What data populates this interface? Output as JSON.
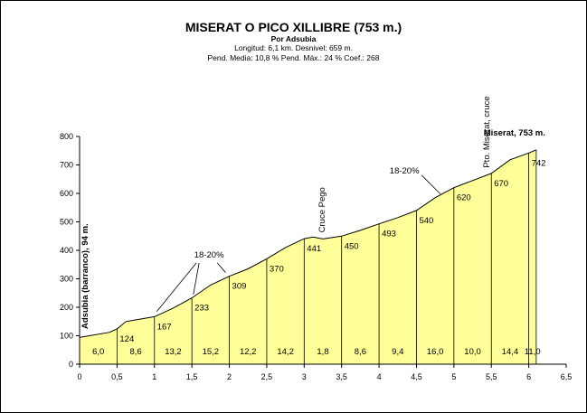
{
  "chart_data": {
    "type": "area",
    "title": "MISERAT O PICO XILLIBRE  (753 m.)",
    "subtitle": "Por Adsubia",
    "info_line1": "Longitud: 6,1 km.  Desnivel: 659 m.",
    "info_line2": "Pend. Media: 10,8 %  Pend. Máx.: 24 %  Coef.: 268",
    "xlim": [
      0,
      6.5
    ],
    "ylim": [
      0,
      800
    ],
    "grid": false,
    "x_ticks": [
      {
        "v": 0,
        "label": "0"
      },
      {
        "v": 0.5,
        "label": "0,5"
      },
      {
        "v": 1,
        "label": "1"
      },
      {
        "v": 1.5,
        "label": "1,5"
      },
      {
        "v": 2,
        "label": "2"
      },
      {
        "v": 2.5,
        "label": "2,5"
      },
      {
        "v": 3,
        "label": "3"
      },
      {
        "v": 3.5,
        "label": "3,5"
      },
      {
        "v": 4,
        "label": "4"
      },
      {
        "v": 4.5,
        "label": "4,5"
      },
      {
        "v": 5,
        "label": "5"
      },
      {
        "v": 5.5,
        "label": "5,5"
      },
      {
        "v": 6,
        "label": "6"
      },
      {
        "v": 6.5,
        "label": "6,5"
      }
    ],
    "y_ticks": [
      0,
      100,
      200,
      300,
      400,
      500,
      600,
      700,
      800
    ],
    "profile": [
      [
        0,
        94
      ],
      [
        0.4,
        112
      ],
      [
        0.5,
        124
      ],
      [
        0.62,
        150
      ],
      [
        0.8,
        158
      ],
      [
        1,
        167
      ],
      [
        1.25,
        197
      ],
      [
        1.5,
        233
      ],
      [
        1.75,
        278
      ],
      [
        2,
        309
      ],
      [
        2.25,
        335
      ],
      [
        2.5,
        370
      ],
      [
        2.75,
        410
      ],
      [
        3,
        441
      ],
      [
        3.12,
        447
      ],
      [
        3.25,
        440
      ],
      [
        3.5,
        450
      ],
      [
        3.75,
        470
      ],
      [
        4,
        493
      ],
      [
        4.25,
        515
      ],
      [
        4.5,
        540
      ],
      [
        4.75,
        585
      ],
      [
        5,
        620
      ],
      [
        5.25,
        645
      ],
      [
        5.5,
        670
      ],
      [
        5.75,
        718
      ],
      [
        6,
        742
      ],
      [
        6.1,
        753
      ]
    ],
    "km_lines": [
      0.5,
      1,
      1.5,
      2,
      2.5,
      3,
      3.5,
      4,
      4.5,
      5,
      5.5,
      6,
      6.1
    ],
    "altitude_labels": [
      {
        "x": 0.5,
        "label": "124"
      },
      {
        "x": 1,
        "label": "167"
      },
      {
        "x": 1.5,
        "label": "233"
      },
      {
        "x": 2,
        "label": "309"
      },
      {
        "x": 2.5,
        "label": "370"
      },
      {
        "x": 3,
        "label": "441"
      },
      {
        "x": 3.5,
        "label": "450"
      },
      {
        "x": 4,
        "label": "493"
      },
      {
        "x": 4.5,
        "label": "540"
      },
      {
        "x": 5,
        "label": "620"
      },
      {
        "x": 5.5,
        "label": "670"
      },
      {
        "x": 6,
        "label": "742"
      }
    ],
    "gradients": [
      {
        "x": 0.25,
        "label": "6,0"
      },
      {
        "x": 0.75,
        "label": "8,6"
      },
      {
        "x": 1.25,
        "label": "13,2"
      },
      {
        "x": 1.75,
        "label": "15,2"
      },
      {
        "x": 2.25,
        "label": "12,2"
      },
      {
        "x": 2.75,
        "label": "14,2"
      },
      {
        "x": 3.25,
        "label": "1,8"
      },
      {
        "x": 3.75,
        "label": "8,6"
      },
      {
        "x": 4.25,
        "label": "9,4"
      },
      {
        "x": 4.75,
        "label": "16,0"
      },
      {
        "x": 5.25,
        "label": "10,0"
      },
      {
        "x": 5.75,
        "label": "14,4"
      },
      {
        "x": 6.05,
        "label": "11,0"
      }
    ],
    "annotations": {
      "start": "Adsubia (barranco), 94 m.",
      "summit": "Miserat, 753 m.",
      "cruce_pego": "Cruce Pego",
      "pto_miserat": "Pto. Miserat, cruce",
      "steep1": "18-20%",
      "steep2": "18-20%"
    },
    "colors": {
      "fill": "#ffff99",
      "line": "#000000"
    }
  }
}
